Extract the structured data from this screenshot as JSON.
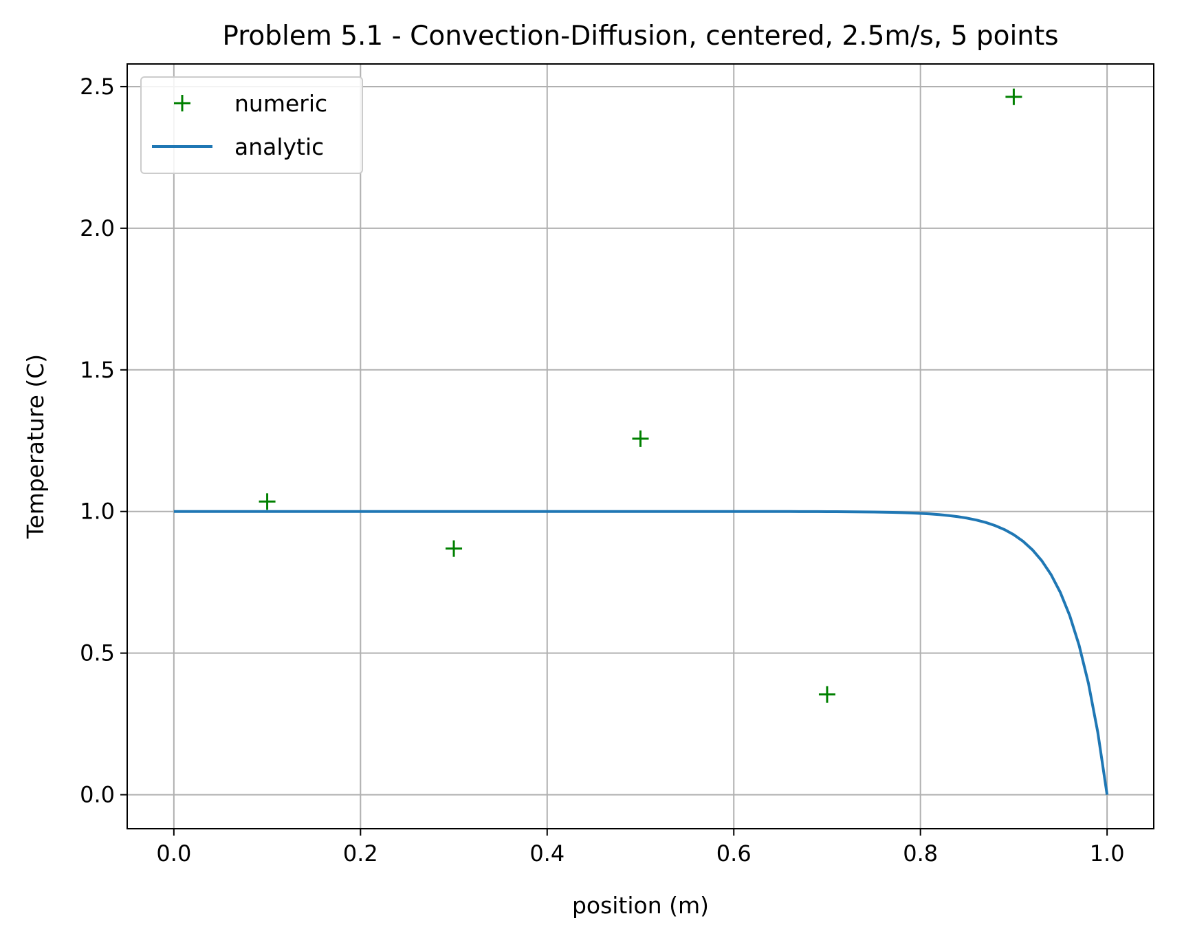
{
  "chart_data": {
    "type": "line",
    "title": "Problem 5.1 - Convection-Diffusion, centered, 2.5m/s, 5 points",
    "xlabel": "position (m)",
    "ylabel": "Temperature (C)",
    "xlim": [
      -0.05,
      1.05
    ],
    "ylim": [
      -0.12,
      2.58
    ],
    "grid": true,
    "legend_position": "top-left",
    "x_ticks": [
      0.0,
      0.2,
      0.4,
      0.6,
      0.8,
      1.0
    ],
    "x_tick_labels": [
      "0.0",
      "0.2",
      "0.4",
      "0.6",
      "0.8",
      "1.0"
    ],
    "y_ticks": [
      0.0,
      0.5,
      1.0,
      1.5,
      2.0,
      2.5
    ],
    "y_tick_labels": [
      "0.0",
      "0.5",
      "1.0",
      "1.5",
      "2.0",
      "2.5"
    ],
    "series": [
      {
        "name": "numeric",
        "kind": "scatter",
        "marker": "+",
        "color": "#008000",
        "x": [
          0.1,
          0.3,
          0.5,
          0.7,
          0.9
        ],
        "y": [
          1.035,
          0.869,
          1.257,
          0.354,
          2.464
        ]
      },
      {
        "name": "analytic",
        "kind": "line",
        "color": "#1f77b4",
        "model": {
          "form": "(exp(Pe) - exp(Pe*x)) / (exp(Pe) - 1)",
          "Pe": 25,
          "x_start": 0.0,
          "x_end": 1.0,
          "samples": 101
        }
      }
    ]
  }
}
